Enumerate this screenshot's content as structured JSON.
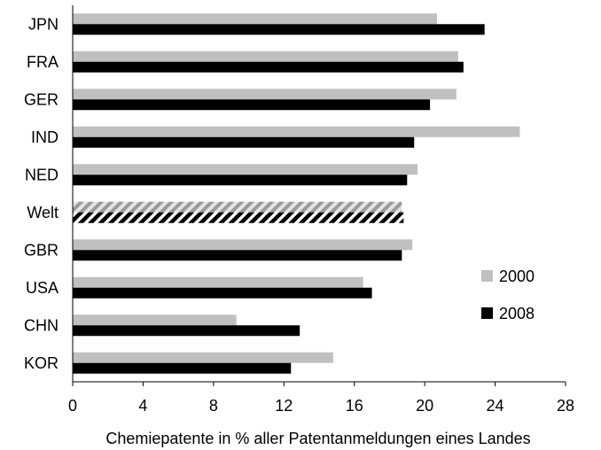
{
  "chart_data": {
    "type": "bar",
    "orientation": "horizontal",
    "categories": [
      "JPN",
      "FRA",
      "GER",
      "IND",
      "NED",
      "Welt",
      "GBR",
      "USA",
      "CHN",
      "KOR"
    ],
    "series": [
      {
        "name": "2000",
        "color": "#c0c0c0",
        "values": [
          20.7,
          21.9,
          21.8,
          25.4,
          19.6,
          18.7,
          19.3,
          16.5,
          9.3,
          14.8
        ]
      },
      {
        "name": "2008",
        "color": "#000000",
        "values": [
          23.4,
          22.2,
          20.3,
          19.4,
          19.0,
          18.8,
          18.7,
          17.0,
          12.9,
          12.4
        ]
      }
    ],
    "highlighted_category": "Welt",
    "xlabel": "Chemiepatente in % aller Patentanmeldungen eines Landes",
    "ylabel": "",
    "xlim": [
      0,
      28
    ],
    "xticks": [
      "0",
      "4",
      "8",
      "12",
      "16",
      "20",
      "24",
      "28"
    ],
    "grid": false,
    "legend_position": "right"
  }
}
